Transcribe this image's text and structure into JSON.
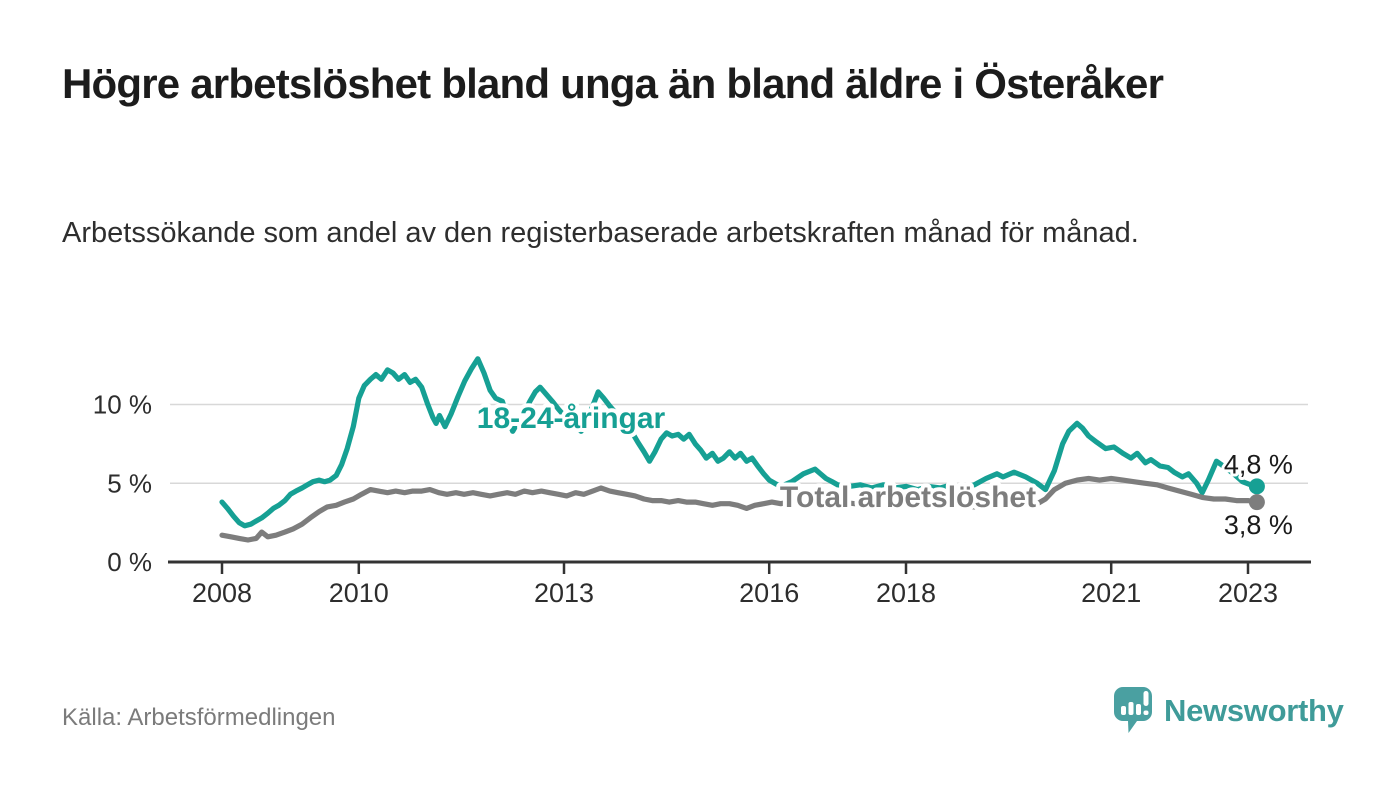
{
  "header": {
    "title": "Högre arbetslöshet bland unga än bland äldre i Österåker",
    "subtitle": "Arbetssökande som andel av den registerbaserade arbetskraften månad för månad."
  },
  "footer": {
    "source": "Källa: Arbetsförmedlingen",
    "brand": "Newsworthy",
    "brand_icon": "speech-bubble-bar-chart-icon"
  },
  "colors": {
    "young_line": "#16a094",
    "total_line": "#7d7d7d",
    "grid": "#d8d8d8",
    "axis": "#333333",
    "tick_text": "#2d2d2d",
    "end_label_text": "#1b1b1b",
    "muted_text": "#7b7b7b",
    "brand_teal": "#4aa0a1",
    "background": "#ffffff"
  },
  "chart_data": {
    "type": "line",
    "title": "Högre arbetslöshet bland unga än bland äldre i Österåker",
    "subtitle": "Arbetssökande som andel av den registerbaserade arbetskraften månad för månad.",
    "xlabel": "",
    "ylabel": "",
    "grid": "horizontal",
    "legend_position": "inline-labels",
    "xlim": [
      2007.9,
      2023.8
    ],
    "ylim": [
      0,
      13.5
    ],
    "y_tick_suffix": " %",
    "y_ticks": [
      {
        "value": 0,
        "label": "0 %"
      },
      {
        "value": 5,
        "label": "5 %"
      },
      {
        "value": 10,
        "label": "10 %"
      }
    ],
    "x_ticks": [
      {
        "value": 2008,
        "label": "2008"
      },
      {
        "value": 2010,
        "label": "2010"
      },
      {
        "value": 2013,
        "label": "2013"
      },
      {
        "value": 2016,
        "label": "2016"
      },
      {
        "value": 2018,
        "label": "2018"
      },
      {
        "value": 2021,
        "label": "2021"
      },
      {
        "value": 2023,
        "label": "2023"
      }
    ],
    "series": [
      {
        "name": "18-24-åringar",
        "color": "#16a094",
        "end_label": "4,8 %",
        "end_value": 4.8,
        "points": [
          [
            2008.0,
            3.8
          ],
          [
            2008.08,
            3.4
          ],
          [
            2008.17,
            2.9
          ],
          [
            2008.25,
            2.5
          ],
          [
            2008.33,
            2.3
          ],
          [
            2008.42,
            2.4
          ],
          [
            2008.5,
            2.6
          ],
          [
            2008.58,
            2.8
          ],
          [
            2008.67,
            3.1
          ],
          [
            2008.75,
            3.4
          ],
          [
            2008.83,
            3.6
          ],
          [
            2008.92,
            3.9
          ],
          [
            2009.0,
            4.3
          ],
          [
            2009.08,
            4.5
          ],
          [
            2009.17,
            4.7
          ],
          [
            2009.25,
            4.9
          ],
          [
            2009.33,
            5.1
          ],
          [
            2009.42,
            5.2
          ],
          [
            2009.5,
            5.1
          ],
          [
            2009.58,
            5.2
          ],
          [
            2009.67,
            5.5
          ],
          [
            2009.75,
            6.2
          ],
          [
            2009.83,
            7.2
          ],
          [
            2009.92,
            8.6
          ],
          [
            2010.0,
            10.4
          ],
          [
            2010.08,
            11.2
          ],
          [
            2010.17,
            11.6
          ],
          [
            2010.25,
            11.9
          ],
          [
            2010.33,
            11.6
          ],
          [
            2010.42,
            12.2
          ],
          [
            2010.5,
            12.0
          ],
          [
            2010.58,
            11.6
          ],
          [
            2010.67,
            11.9
          ],
          [
            2010.75,
            11.4
          ],
          [
            2010.83,
            11.6
          ],
          [
            2010.92,
            11.1
          ],
          [
            2011.0,
            10.1
          ],
          [
            2011.08,
            9.2
          ],
          [
            2011.13,
            8.8
          ],
          [
            2011.18,
            9.3
          ],
          [
            2011.26,
            8.6
          ],
          [
            2011.35,
            9.4
          ],
          [
            2011.45,
            10.5
          ],
          [
            2011.55,
            11.5
          ],
          [
            2011.65,
            12.3
          ],
          [
            2011.74,
            12.9
          ],
          [
            2011.83,
            12.0
          ],
          [
            2011.92,
            10.9
          ],
          [
            2012.0,
            10.4
          ],
          [
            2012.1,
            10.2
          ],
          [
            2012.18,
            9.1
          ],
          [
            2012.25,
            8.3
          ],
          [
            2012.33,
            8.9
          ],
          [
            2012.42,
            9.5
          ],
          [
            2012.5,
            10.2
          ],
          [
            2012.58,
            10.8
          ],
          [
            2012.65,
            11.1
          ],
          [
            2012.75,
            10.6
          ],
          [
            2012.83,
            10.2
          ],
          [
            2012.92,
            9.7
          ],
          [
            2013.0,
            9.3
          ],
          [
            2013.08,
            8.9
          ],
          [
            2013.17,
            8.6
          ],
          [
            2013.25,
            8.3
          ],
          [
            2013.33,
            9.0
          ],
          [
            2013.42,
            9.9
          ],
          [
            2013.5,
            10.8
          ],
          [
            2013.58,
            10.4
          ],
          [
            2013.67,
            9.9
          ],
          [
            2013.75,
            9.5
          ],
          [
            2013.83,
            9.1
          ],
          [
            2013.92,
            8.7
          ],
          [
            2014.0,
            8.2
          ],
          [
            2014.08,
            7.6
          ],
          [
            2014.17,
            7.0
          ],
          [
            2014.25,
            6.4
          ],
          [
            2014.33,
            7.0
          ],
          [
            2014.42,
            7.8
          ],
          [
            2014.5,
            8.2
          ],
          [
            2014.58,
            8.0
          ],
          [
            2014.67,
            8.1
          ],
          [
            2014.75,
            7.8
          ],
          [
            2014.83,
            8.1
          ],
          [
            2014.92,
            7.5
          ],
          [
            2015.0,
            7.1
          ],
          [
            2015.08,
            6.6
          ],
          [
            2015.17,
            6.9
          ],
          [
            2015.25,
            6.4
          ],
          [
            2015.33,
            6.6
          ],
          [
            2015.42,
            7.0
          ],
          [
            2015.5,
            6.6
          ],
          [
            2015.58,
            6.9
          ],
          [
            2015.67,
            6.4
          ],
          [
            2015.75,
            6.6
          ],
          [
            2015.83,
            6.1
          ],
          [
            2015.92,
            5.6
          ],
          [
            2016.0,
            5.2
          ],
          [
            2016.08,
            5.0
          ],
          [
            2016.17,
            4.8
          ],
          [
            2016.33,
            5.1
          ],
          [
            2016.5,
            5.6
          ],
          [
            2016.67,
            5.9
          ],
          [
            2016.75,
            5.6
          ],
          [
            2016.83,
            5.3
          ],
          [
            2016.92,
            5.1
          ],
          [
            2017.0,
            4.9
          ],
          [
            2017.17,
            4.8
          ],
          [
            2017.33,
            4.9
          ],
          [
            2017.5,
            4.7
          ],
          [
            2017.67,
            4.9
          ],
          [
            2017.83,
            4.7
          ],
          [
            2018.0,
            4.8
          ],
          [
            2018.17,
            4.6
          ],
          [
            2018.33,
            4.8
          ],
          [
            2018.5,
            4.7
          ],
          [
            2018.67,
            4.9
          ],
          [
            2018.83,
            4.7
          ],
          [
            2019.0,
            4.9
          ],
          [
            2019.17,
            5.3
          ],
          [
            2019.33,
            5.6
          ],
          [
            2019.42,
            5.4
          ],
          [
            2019.58,
            5.7
          ],
          [
            2019.75,
            5.4
          ],
          [
            2019.92,
            5.0
          ],
          [
            2020.04,
            4.6
          ],
          [
            2020.17,
            5.8
          ],
          [
            2020.29,
            7.5
          ],
          [
            2020.38,
            8.3
          ],
          [
            2020.5,
            8.8
          ],
          [
            2020.58,
            8.5
          ],
          [
            2020.67,
            8.0
          ],
          [
            2020.79,
            7.6
          ],
          [
            2020.92,
            7.2
          ],
          [
            2021.04,
            7.3
          ],
          [
            2021.17,
            6.9
          ],
          [
            2021.29,
            6.6
          ],
          [
            2021.38,
            6.9
          ],
          [
            2021.5,
            6.3
          ],
          [
            2021.58,
            6.5
          ],
          [
            2021.71,
            6.1
          ],
          [
            2021.83,
            6.0
          ],
          [
            2021.92,
            5.7
          ],
          [
            2022.04,
            5.4
          ],
          [
            2022.13,
            5.6
          ],
          [
            2022.25,
            5.0
          ],
          [
            2022.33,
            4.4
          ],
          [
            2022.42,
            5.2
          ],
          [
            2022.54,
            6.4
          ],
          [
            2022.67,
            6.0
          ],
          [
            2022.79,
            5.6
          ],
          [
            2022.92,
            5.1
          ],
          [
            2023.04,
            4.9
          ],
          [
            2023.13,
            4.8
          ]
        ]
      },
      {
        "name": "Total arbetslöshet",
        "color": "#7d7d7d",
        "end_label": "3,8 %",
        "end_value": 3.8,
        "points": [
          [
            2008.0,
            1.7
          ],
          [
            2008.13,
            1.6
          ],
          [
            2008.25,
            1.5
          ],
          [
            2008.38,
            1.4
          ],
          [
            2008.5,
            1.5
          ],
          [
            2008.58,
            1.9
          ],
          [
            2008.67,
            1.6
          ],
          [
            2008.79,
            1.7
          ],
          [
            2008.92,
            1.9
          ],
          [
            2009.04,
            2.1
          ],
          [
            2009.17,
            2.4
          ],
          [
            2009.29,
            2.8
          ],
          [
            2009.42,
            3.2
          ],
          [
            2009.54,
            3.5
          ],
          [
            2009.67,
            3.6
          ],
          [
            2009.79,
            3.8
          ],
          [
            2009.92,
            4.0
          ],
          [
            2010.04,
            4.3
          ],
          [
            2010.17,
            4.6
          ],
          [
            2010.29,
            4.5
          ],
          [
            2010.42,
            4.4
          ],
          [
            2010.54,
            4.5
          ],
          [
            2010.67,
            4.4
          ],
          [
            2010.79,
            4.5
          ],
          [
            2010.92,
            4.5
          ],
          [
            2011.04,
            4.6
          ],
          [
            2011.17,
            4.4
          ],
          [
            2011.29,
            4.3
          ],
          [
            2011.42,
            4.4
          ],
          [
            2011.54,
            4.3
          ],
          [
            2011.67,
            4.4
          ],
          [
            2011.79,
            4.3
          ],
          [
            2011.92,
            4.2
          ],
          [
            2012.04,
            4.3
          ],
          [
            2012.17,
            4.4
          ],
          [
            2012.29,
            4.3
          ],
          [
            2012.42,
            4.5
          ],
          [
            2012.54,
            4.4
          ],
          [
            2012.67,
            4.5
          ],
          [
            2012.79,
            4.4
          ],
          [
            2012.92,
            4.3
          ],
          [
            2013.04,
            4.2
          ],
          [
            2013.17,
            4.4
          ],
          [
            2013.29,
            4.3
          ],
          [
            2013.42,
            4.5
          ],
          [
            2013.54,
            4.7
          ],
          [
            2013.67,
            4.5
          ],
          [
            2013.79,
            4.4
          ],
          [
            2013.92,
            4.3
          ],
          [
            2014.04,
            4.2
          ],
          [
            2014.17,
            4.0
          ],
          [
            2014.29,
            3.9
          ],
          [
            2014.42,
            3.9
          ],
          [
            2014.54,
            3.8
          ],
          [
            2014.67,
            3.9
          ],
          [
            2014.79,
            3.8
          ],
          [
            2014.92,
            3.8
          ],
          [
            2015.04,
            3.7
          ],
          [
            2015.17,
            3.6
          ],
          [
            2015.29,
            3.7
          ],
          [
            2015.42,
            3.7
          ],
          [
            2015.54,
            3.6
          ],
          [
            2015.67,
            3.4
          ],
          [
            2015.79,
            3.6
          ],
          [
            2015.92,
            3.7
          ],
          [
            2016.04,
            3.8
          ],
          [
            2016.17,
            3.7
          ],
          [
            2016.29,
            3.8
          ],
          [
            2016.42,
            3.7
          ],
          [
            2016.54,
            3.8
          ],
          [
            2016.67,
            3.7
          ],
          [
            2016.79,
            3.8
          ],
          [
            2016.92,
            3.7
          ],
          [
            2017.04,
            3.8
          ],
          [
            2017.25,
            3.7
          ],
          [
            2017.5,
            3.8
          ],
          [
            2017.75,
            3.7
          ],
          [
            2018.0,
            3.7
          ],
          [
            2018.25,
            3.6
          ],
          [
            2018.5,
            3.7
          ],
          [
            2018.75,
            3.6
          ],
          [
            2019.0,
            3.5
          ],
          [
            2019.25,
            3.6
          ],
          [
            2019.5,
            3.5
          ],
          [
            2019.75,
            3.6
          ],
          [
            2019.92,
            3.7
          ],
          [
            2020.04,
            4.0
          ],
          [
            2020.17,
            4.6
          ],
          [
            2020.33,
            5.0
          ],
          [
            2020.5,
            5.2
          ],
          [
            2020.67,
            5.3
          ],
          [
            2020.83,
            5.2
          ],
          [
            2021.0,
            5.3
          ],
          [
            2021.17,
            5.2
          ],
          [
            2021.33,
            5.1
          ],
          [
            2021.5,
            5.0
          ],
          [
            2021.67,
            4.9
          ],
          [
            2021.83,
            4.7
          ],
          [
            2022.0,
            4.5
          ],
          [
            2022.17,
            4.3
          ],
          [
            2022.33,
            4.1
          ],
          [
            2022.5,
            4.0
          ],
          [
            2022.67,
            4.0
          ],
          [
            2022.83,
            3.9
          ],
          [
            2023.0,
            3.9
          ],
          [
            2023.13,
            3.8
          ]
        ]
      }
    ]
  }
}
